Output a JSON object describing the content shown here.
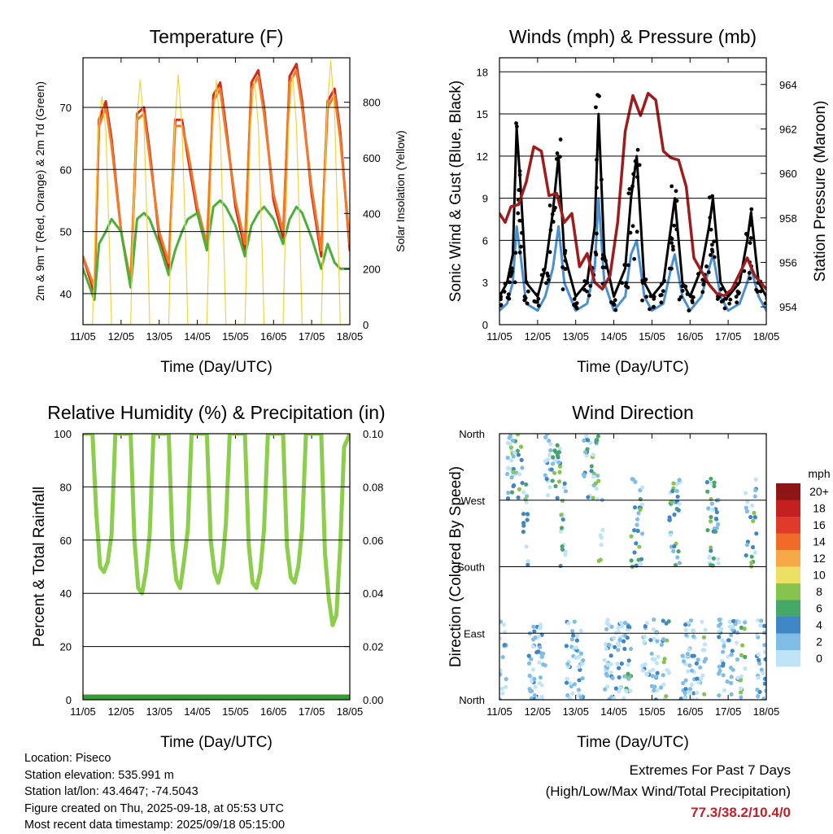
{
  "chart_data": [
    {
      "id": "temperature",
      "type": "line",
      "title": "Temperature (F)",
      "xlabel": "Time (Day/UTC)",
      "ylabel": "2m & 9m T (Red, Orange) & 2m Td (Green)",
      "ylabel_right": "Solar Insolation (Yellow)",
      "x_ticks": [
        "11/05",
        "12/05",
        "13/05",
        "14/05",
        "15/05",
        "16/05",
        "17/05",
        "18/05"
      ],
      "ylim": [
        35,
        78
      ],
      "y_ticks": [
        40,
        50,
        60,
        70
      ],
      "ylim_right": [
        0,
        960
      ],
      "y_ticks_right": [
        0,
        200,
        400,
        600,
        800
      ],
      "series": [
        {
          "name": "2m T",
          "color": "#d42a1c",
          "y_axis": "left",
          "x": [
            0,
            0.3,
            0.42,
            0.6,
            0.75,
            1.0,
            1.25,
            1.42,
            1.6,
            1.75,
            2.0,
            2.25,
            2.42,
            2.6,
            2.75,
            3.0,
            3.25,
            3.42,
            3.6,
            3.75,
            4.0,
            4.25,
            4.42,
            4.6,
            4.75,
            5.0,
            5.25,
            5.42,
            5.6,
            5.75,
            6.0,
            6.25,
            6.42,
            6.6,
            6.75,
            7.0
          ],
          "values": [
            46,
            40,
            68,
            71,
            65,
            50,
            41,
            69,
            70,
            63,
            49,
            44,
            68,
            68,
            62,
            53,
            47,
            72,
            74,
            67,
            54,
            47,
            74,
            76,
            70,
            55,
            49,
            75,
            77,
            71,
            56,
            46,
            71,
            73,
            66,
            47
          ]
        },
        {
          "name": "9m T",
          "color": "#f07a28",
          "y_axis": "left",
          "x": [
            0,
            0.3,
            0.42,
            0.6,
            0.75,
            1.0,
            1.25,
            1.42,
            1.6,
            1.75,
            2.0,
            2.25,
            2.42,
            2.6,
            2.75,
            3.0,
            3.25,
            3.42,
            3.6,
            3.75,
            4.0,
            4.25,
            4.42,
            4.6,
            4.75,
            5.0,
            5.25,
            5.42,
            5.6,
            5.75,
            6.0,
            6.25,
            6.42,
            6.6,
            6.75,
            7.0
          ],
          "values": [
            46,
            41,
            67,
            70,
            64,
            50,
            42,
            68,
            69,
            62,
            50,
            45,
            67,
            67,
            63,
            54,
            48,
            71,
            73,
            66,
            55,
            48,
            73,
            75,
            69,
            56,
            50,
            74,
            76,
            70,
            57,
            47,
            70,
            72,
            65,
            48
          ]
        },
        {
          "name": "2m Td",
          "color": "#4caf3a",
          "y_axis": "left",
          "x": [
            0,
            0.3,
            0.42,
            0.6,
            0.75,
            1.0,
            1.25,
            1.42,
            1.6,
            1.75,
            2.0,
            2.25,
            2.42,
            2.6,
            2.75,
            3.0,
            3.25,
            3.42,
            3.6,
            3.75,
            4.0,
            4.25,
            4.42,
            4.6,
            4.75,
            5.0,
            5.25,
            5.42,
            5.6,
            5.75,
            6.0,
            6.25,
            6.42,
            6.6,
            6.75,
            7.0
          ],
          "values": [
            44,
            39,
            48,
            50,
            52,
            50,
            41,
            52,
            53,
            52,
            48,
            43,
            47,
            50,
            52,
            53,
            47,
            54,
            55,
            54,
            51,
            46,
            51,
            53,
            54,
            52,
            48,
            52,
            54,
            53,
            49,
            44,
            48,
            45,
            44,
            44
          ]
        },
        {
          "name": "Solar Insolation",
          "color": "#f2d33c",
          "y_axis": "right",
          "x": [
            0,
            0.25,
            0.3,
            0.4,
            0.5,
            0.6,
            0.7,
            0.75,
            1.0,
            1.25,
            1.3,
            1.4,
            1.5,
            1.6,
            1.7,
            1.75,
            2.0,
            2.25,
            2.3,
            2.4,
            2.5,
            2.6,
            2.7,
            2.75,
            3.0,
            3.25,
            3.3,
            3.4,
            3.5,
            3.6,
            3.7,
            3.75,
            4.0,
            4.25,
            4.3,
            4.4,
            4.5,
            4.6,
            4.7,
            4.75,
            5.0,
            5.25,
            5.3,
            5.4,
            5.5,
            5.6,
            5.7,
            5.75,
            6.0,
            6.25,
            6.3,
            6.4,
            6.5,
            6.6,
            6.7,
            6.75,
            7.0
          ],
          "values": [
            0,
            0,
            250,
            700,
            820,
            700,
            250,
            0,
            0,
            0,
            280,
            720,
            880,
            720,
            280,
            0,
            0,
            0,
            270,
            700,
            900,
            700,
            270,
            0,
            0,
            0,
            260,
            700,
            880,
            700,
            260,
            0,
            0,
            0,
            270,
            720,
            880,
            720,
            270,
            0,
            0,
            0,
            270,
            720,
            900,
            720,
            270,
            0,
            0,
            0,
            280,
            760,
            950,
            760,
            280,
            0,
            0
          ]
        }
      ]
    },
    {
      "id": "winds",
      "type": "line",
      "title": "Winds (mph) & Pressure (mb)",
      "xlabel": "Time (Day/UTC)",
      "ylabel": "Sonic Wind & Gust (Blue, Black)",
      "ylabel_right": "Station Pressure (Maroon)",
      "x_ticks": [
        "11/05",
        "12/05",
        "13/05",
        "14/05",
        "15/05",
        "16/05",
        "17/05",
        "18/05"
      ],
      "ylim": [
        0,
        19
      ],
      "y_ticks": [
        0,
        3,
        6,
        9,
        12,
        15,
        18
      ],
      "ylim_right": [
        953.2,
        965.2
      ],
      "y_ticks_right": [
        954,
        956,
        958,
        960,
        962,
        964
      ],
      "series": [
        {
          "name": "Sonic Wind",
          "color": "#4a90d0",
          "y_axis": "left",
          "x": [
            0,
            0.2,
            0.35,
            0.45,
            0.55,
            0.7,
            1.0,
            1.2,
            1.4,
            1.55,
            1.7,
            2.0,
            2.3,
            2.5,
            2.6,
            2.75,
            3.0,
            3.3,
            3.45,
            3.6,
            3.8,
            4.0,
            4.3,
            4.5,
            4.6,
            4.8,
            5.0,
            5.3,
            5.5,
            5.6,
            5.8,
            6.0,
            6.3,
            6.5,
            6.6,
            6.8,
            7.0
          ],
          "values": [
            1,
            1.5,
            3,
            7,
            5,
            1.5,
            1,
            2,
            4,
            7,
            3,
            1,
            1.5,
            4,
            9,
            3,
            1,
            2,
            5,
            6,
            2,
            1,
            1.5,
            4,
            5,
            2,
            1,
            2,
            4,
            5,
            2,
            1,
            1.5,
            3,
            4,
            2,
            1
          ]
        },
        {
          "name": "Gust",
          "color": "#000000",
          "y_axis": "left",
          "x": [
            0,
            0.2,
            0.35,
            0.45,
            0.55,
            0.7,
            1.0,
            1.2,
            1.4,
            1.55,
            1.7,
            2.0,
            2.3,
            2.5,
            2.6,
            2.75,
            3.0,
            3.3,
            3.45,
            3.6,
            3.8,
            4.0,
            4.3,
            4.5,
            4.6,
            4.8,
            5.0,
            5.3,
            5.5,
            5.6,
            5.8,
            6.0,
            6.3,
            6.5,
            6.6,
            6.8,
            7.0
          ],
          "values": [
            2,
            3,
            5,
            14,
            10,
            3,
            2,
            4,
            8,
            12,
            5,
            2,
            3,
            7,
            15,
            5,
            2,
            4,
            9,
            12,
            3,
            2,
            3,
            7,
            9,
            3,
            2,
            4,
            7,
            9,
            3,
            2,
            3,
            6,
            8,
            3,
            2
          ]
        },
        {
          "name": "Station Pressure",
          "color": "#a01c1c",
          "y_axis": "right",
          "x": [
            0,
            0.15,
            0.3,
            0.5,
            0.7,
            0.9,
            1.1,
            1.3,
            1.5,
            1.7,
            1.9,
            2.1,
            2.3,
            2.5,
            2.7,
            2.9,
            3.1,
            3.3,
            3.5,
            3.7,
            3.9,
            4.1,
            4.3,
            4.5,
            4.7,
            4.9,
            5.1,
            5.3,
            5.5,
            5.7,
            5.9,
            6.1,
            6.3,
            6.5,
            6.7,
            6.9,
            7.0
          ],
          "values": [
            958.2,
            957.8,
            958.5,
            958.6,
            959.6,
            961.2,
            961.0,
            959.0,
            959.1,
            957.8,
            958.2,
            955.8,
            956.4,
            955.1,
            954.8,
            955.4,
            957.8,
            961.9,
            963.5,
            962.6,
            963.6,
            963.3,
            961.0,
            960.7,
            960.6,
            959.4,
            956.2,
            955.6,
            955.0,
            954.6,
            954.5,
            954.8,
            955.5,
            956.2,
            955.4,
            955.0,
            954.8
          ]
        }
      ]
    },
    {
      "id": "humidity",
      "type": "line",
      "title": "Relative Humidity (%) & Precipitation (in)",
      "xlabel": "Time (Day/UTC)",
      "ylabel": "Percent & Total Rainfall",
      "x_ticks": [
        "11/05",
        "12/05",
        "13/05",
        "14/05",
        "15/05",
        "16/05",
        "17/05",
        "18/05"
      ],
      "ylim": [
        0,
        100
      ],
      "y_ticks": [
        0,
        20,
        40,
        60,
        80,
        100
      ],
      "y_ticks_right": [
        "0.00",
        "0.02",
        "0.04",
        "0.06",
        "0.08",
        "0.10"
      ],
      "series": [
        {
          "name": "Relative Humidity",
          "color": "#8ccd4c",
          "y_axis": "left",
          "x": [
            0,
            0.25,
            0.35,
            0.45,
            0.55,
            0.65,
            0.75,
            0.85,
            1.0,
            1.25,
            1.35,
            1.45,
            1.55,
            1.65,
            1.75,
            1.85,
            2.0,
            2.25,
            2.35,
            2.45,
            2.55,
            2.65,
            2.75,
            2.85,
            3.0,
            3.25,
            3.35,
            3.45,
            3.55,
            3.65,
            3.75,
            3.85,
            4.0,
            4.25,
            4.35,
            4.45,
            4.55,
            4.65,
            4.75,
            4.85,
            5.0,
            5.25,
            5.35,
            5.45,
            5.55,
            5.65,
            5.75,
            5.85,
            6.0,
            6.25,
            6.35,
            6.45,
            6.55,
            6.65,
            6.75,
            6.85,
            7.0
          ],
          "values": [
            100,
            100,
            70,
            50,
            48,
            52,
            62,
            100,
            100,
            100,
            60,
            42,
            40,
            48,
            62,
            100,
            100,
            100,
            58,
            45,
            42,
            52,
            64,
            100,
            100,
            100,
            60,
            48,
            44,
            50,
            66,
            100,
            100,
            100,
            58,
            44,
            42,
            48,
            64,
            100,
            100,
            100,
            58,
            46,
            44,
            50,
            64,
            100,
            100,
            100,
            55,
            38,
            28,
            32,
            58,
            95,
            100
          ]
        },
        {
          "name": "Precipitation",
          "color": "#3a9a3a",
          "y_axis": "right",
          "x": [
            0,
            7
          ],
          "values": [
            0,
            0
          ]
        }
      ]
    },
    {
      "id": "direction",
      "type": "scatter",
      "title": "Wind Direction",
      "xlabel": "Time (Day/UTC)",
      "ylabel": "Direction (Colored By Speed)",
      "x_ticks": [
        "11/05",
        "12/05",
        "13/05",
        "14/05",
        "15/05",
        "16/05",
        "17/05",
        "18/05"
      ],
      "ylim": [
        0,
        360
      ],
      "y_ticks": [
        "North",
        "East",
        "South",
        "West",
        "North"
      ],
      "legend_title": "mph",
      "legend_labels": [
        "20+",
        "18",
        "16",
        "14",
        "12",
        "10",
        "8",
        "6",
        "4",
        "2",
        "0"
      ],
      "legend_colors": [
        "#8e1515",
        "#c42020",
        "#e03a2a",
        "#f06a28",
        "#f7a846",
        "#ece064",
        "#86c44e",
        "#46a868",
        "#3f86c6",
        "#7fbce6",
        "#bfe3f7"
      ]
    }
  ],
  "info": {
    "location": "Location: Piseco",
    "elevation": "Station elevation: 535.991 m",
    "latlon": "Station lat/lon: 43.4647; -74.5043",
    "created": "Figure created on Thu, 2025-09-18, at 05:53 UTC",
    "recent": "Most recent data timestamp: 2025/09/18 05:15:00"
  },
  "extremes": {
    "title": "Extremes For Past 7 Days",
    "subtitle": "(High/Low/Max Wind/Total Precipitation)",
    "value": "77.3/38.2/10.4/0"
  }
}
